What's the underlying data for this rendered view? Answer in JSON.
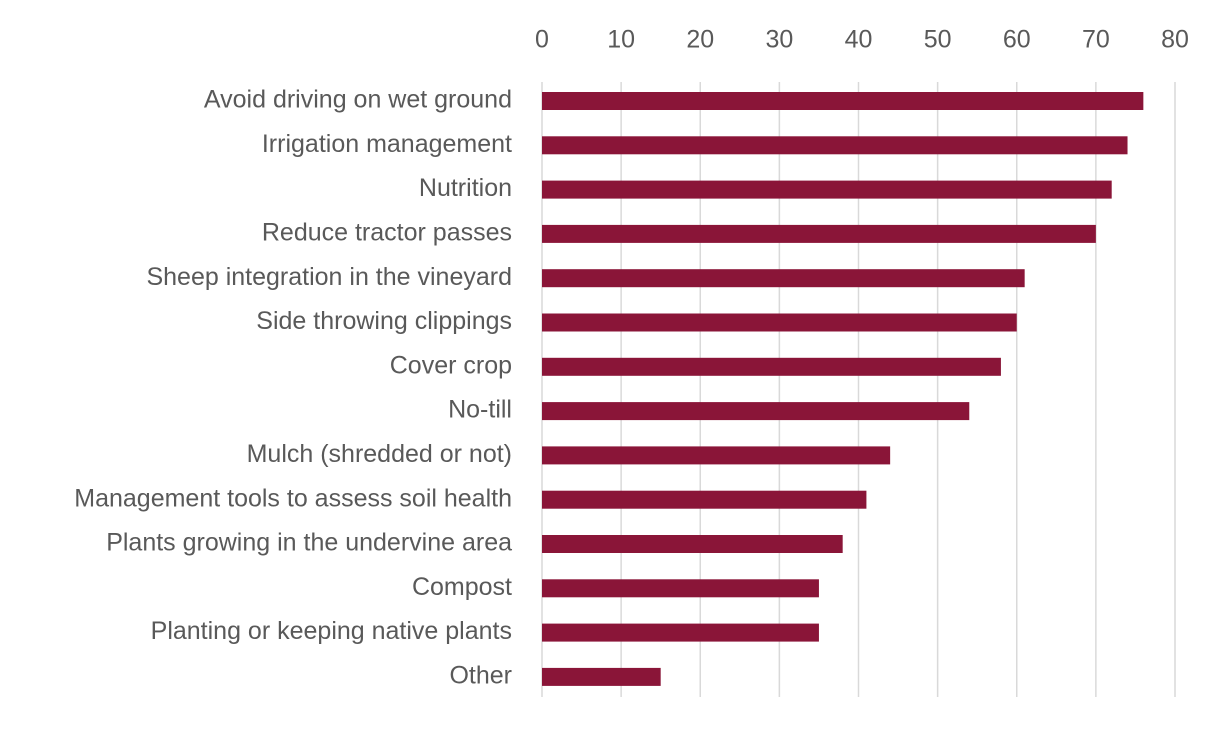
{
  "chart_data": {
    "type": "bar",
    "orientation": "horizontal",
    "title": "",
    "xlabel": "",
    "ylabel": "",
    "xlim": [
      0,
      80
    ],
    "x_ticks": [
      0,
      10,
      20,
      30,
      40,
      50,
      60,
      70,
      80
    ],
    "x_axis_position": "top",
    "grid": true,
    "legend": "none",
    "bar_color": "#8a1538",
    "categories": [
      "Avoid driving on wet ground",
      "Irrigation management",
      "Nutrition",
      "Reduce tractor passes",
      "Sheep integration in the vineyard",
      "Side throwing clippings",
      "Cover crop",
      "No-till",
      "Mulch (shredded or not)",
      "Management tools to assess soil health",
      "Plants growing in the undervine area",
      "Compost",
      "Planting or keeping native plants",
      "Other"
    ],
    "values": [
      76,
      74,
      72,
      70,
      61,
      60,
      58,
      54,
      44,
      41,
      38,
      35,
      35,
      15
    ]
  }
}
